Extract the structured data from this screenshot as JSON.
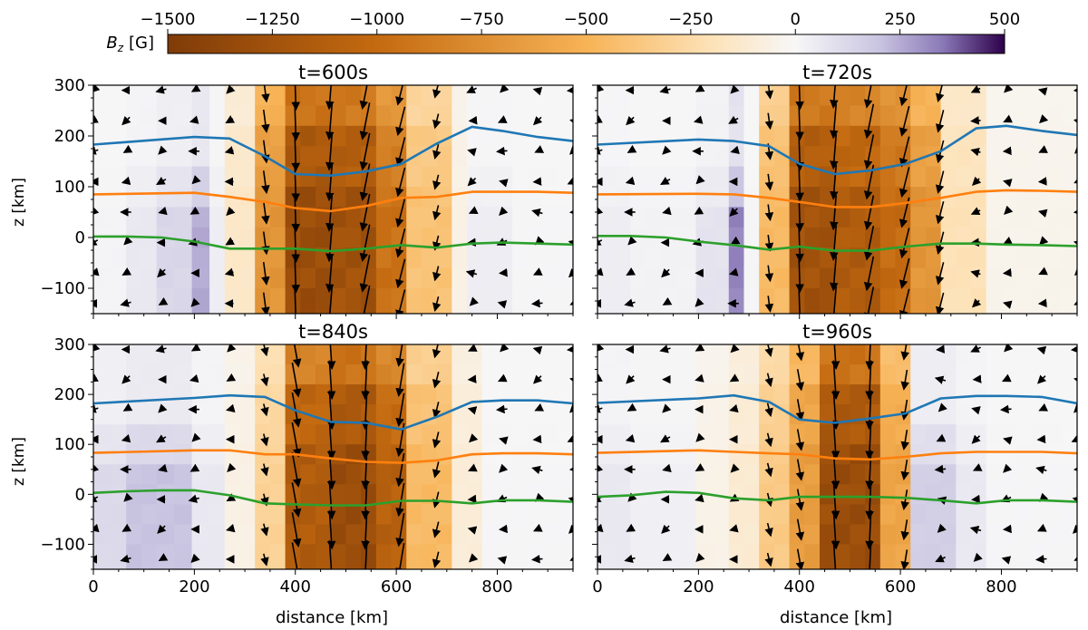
{
  "chart_data": {
    "type": "heatmap",
    "colorbar": {
      "label": "B_z [G]",
      "label_main": "B",
      "label_sub": "z",
      "label_unit": "[G]",
      "range": [
        -1500,
        500
      ],
      "ticks": [
        -1500,
        -1250,
        -1000,
        -750,
        -500,
        -250,
        0,
        250,
        500
      ],
      "tick_labels": [
        "−1500",
        "−1250",
        "−1000",
        "−750",
        "−500",
        "−250",
        "0",
        "250",
        "500"
      ],
      "colormap": "PuOr",
      "stops": [
        {
          "value": -1500,
          "color": "#7f3b08"
        },
        {
          "value": -1000,
          "color": "#c46a10"
        },
        {
          "value": -500,
          "color": "#f7b356"
        },
        {
          "value": -200,
          "color": "#fde2b8"
        },
        {
          "value": 0,
          "color": "#f7f7f7"
        },
        {
          "value": 200,
          "color": "#c9c5e1"
        },
        {
          "value": 350,
          "color": "#8b7ab8"
        },
        {
          "value": 500,
          "color": "#2d004b"
        }
      ]
    },
    "x_axis": {
      "label": "distance [km]",
      "range": [
        0,
        950
      ],
      "ticks": [
        0,
        200,
        400,
        600,
        800
      ],
      "tick_labels": [
        "0",
        "200",
        "400",
        "600",
        "800"
      ]
    },
    "y_axis": {
      "label": "z [km]",
      "range": [
        -150,
        300
      ],
      "ticks": [
        -100,
        0,
        100,
        200,
        300
      ],
      "tick_labels": [
        "−100",
        "0",
        "100",
        "200",
        "300"
      ]
    },
    "column_x": [
      0,
      35,
      65,
      95,
      125,
      160,
      195,
      230,
      260,
      290,
      320,
      350,
      380,
      410,
      440,
      470,
      500,
      530,
      560,
      590,
      620,
      650,
      680,
      710,
      740,
      770,
      800,
      830,
      860,
      890,
      920,
      950
    ],
    "row_z": [
      300,
      260,
      220,
      180,
      140,
      100,
      60,
      20,
      -20,
      -60,
      -100,
      -150
    ],
    "line_colors": [
      "#1f77b4",
      "#ff7f0e",
      "#2ca02c"
    ],
    "arrow_x": [
      0,
      65,
      135,
      200,
      270,
      340,
      400,
      470,
      540,
      610,
      680,
      750,
      810,
      880,
      950
    ],
    "arrow_z": [
      290,
      230,
      170,
      110,
      50,
      -10,
      -70,
      -130
    ],
    "panels": [
      {
        "title": "t=600s",
        "columns": [
          {
            "x0": 0,
            "x1": 65,
            "bz": 15
          },
          {
            "x0": 65,
            "x1": 125,
            "bz": 60
          },
          {
            "x0": 125,
            "x1": 190,
            "bz": 130
          },
          {
            "x0": 190,
            "x1": 230,
            "bz": 250
          },
          {
            "x0": 230,
            "x1": 265,
            "bz": 40
          },
          {
            "x0": 265,
            "x1": 320,
            "bz": -150
          },
          {
            "x0": 320,
            "x1": 380,
            "bz": -700
          },
          {
            "x0": 380,
            "x1": 460,
            "bz": -1300
          },
          {
            "x0": 460,
            "x1": 560,
            "bz": -1250
          },
          {
            "x0": 560,
            "x1": 630,
            "bz": -950
          },
          {
            "x0": 630,
            "x1": 700,
            "bz": -400
          },
          {
            "x0": 700,
            "x1": 740,
            "bz": -60
          },
          {
            "x0": 740,
            "x1": 820,
            "bz": 40
          },
          {
            "x0": 820,
            "x1": 950,
            "bz": 10
          }
        ],
        "lines": [
          {
            "x": [
              0,
              200,
              270,
              340,
              400,
              470,
              540,
              610,
              680,
              750,
              810,
              880,
              950
            ],
            "z": [
              183,
              198,
              195,
              160,
              125,
              122,
              130,
              145,
              185,
              218,
              210,
              198,
              190
            ]
          },
          {
            "x": [
              0,
              200,
              270,
              340,
              400,
              470,
              540,
              610,
              680,
              750,
              810,
              880,
              950
            ],
            "z": [
              85,
              88,
              80,
              70,
              58,
              52,
              62,
              78,
              80,
              90,
              90,
              90,
              88
            ]
          },
          {
            "x": [
              0,
              65,
              135,
              200,
              270,
              340,
              400,
              470,
              540,
              610,
              680,
              750,
              810,
              880,
              950
            ],
            "z": [
              2,
              2,
              0,
              -8,
              -22,
              -22,
              -22,
              -27,
              -22,
              -15,
              -20,
              -12,
              -10,
              -12,
              -14
            ]
          }
        ]
      },
      {
        "title": "t=720s",
        "columns": [
          {
            "x0": 0,
            "x1": 65,
            "bz": 40
          },
          {
            "x0": 65,
            "x1": 200,
            "bz": 20
          },
          {
            "x0": 200,
            "x1": 255,
            "bz": 80
          },
          {
            "x0": 255,
            "x1": 290,
            "bz": 330
          },
          {
            "x0": 290,
            "x1": 320,
            "bz": 10
          },
          {
            "x0": 320,
            "x1": 380,
            "bz": -450
          },
          {
            "x0": 380,
            "x1": 460,
            "bz": -1250
          },
          {
            "x0": 460,
            "x1": 570,
            "bz": -1150
          },
          {
            "x0": 570,
            "x1": 630,
            "bz": -1000
          },
          {
            "x0": 630,
            "x1": 690,
            "bz": -700
          },
          {
            "x0": 690,
            "x1": 760,
            "bz": -200
          },
          {
            "x0": 760,
            "x1": 950,
            "bz": -40
          }
        ],
        "lines": [
          {
            "x": [
              0,
              200,
              270,
              340,
              400,
              470,
              540,
              610,
              680,
              750,
              810,
              880,
              950
            ],
            "z": [
              183,
              193,
              190,
              180,
              145,
              125,
              132,
              145,
              170,
              215,
              220,
              210,
              202
            ]
          },
          {
            "x": [
              0,
              200,
              270,
              340,
              400,
              470,
              540,
              610,
              680,
              750,
              810,
              880,
              950
            ],
            "z": [
              85,
              86,
              85,
              78,
              70,
              60,
              60,
              68,
              78,
              90,
              93,
              92,
              90
            ]
          },
          {
            "x": [
              0,
              65,
              135,
              200,
              270,
              340,
              400,
              470,
              540,
              610,
              680,
              750,
              810,
              880,
              950
            ],
            "z": [
              3,
              3,
              0,
              -8,
              -15,
              -24,
              -18,
              -26,
              -26,
              -18,
              -12,
              -12,
              -14,
              -15,
              -17
            ]
          }
        ]
      },
      {
        "title": "t=840s",
        "columns": [
          {
            "x0": 0,
            "x1": 65,
            "bz": 120
          },
          {
            "x0": 65,
            "x1": 195,
            "bz": 200
          },
          {
            "x0": 195,
            "x1": 250,
            "bz": 60
          },
          {
            "x0": 250,
            "x1": 320,
            "bz": -60
          },
          {
            "x0": 320,
            "x1": 380,
            "bz": -300
          },
          {
            "x0": 380,
            "x1": 460,
            "bz": -1150
          },
          {
            "x0": 460,
            "x1": 560,
            "bz": -1300
          },
          {
            "x0": 560,
            "x1": 630,
            "bz": -1100
          },
          {
            "x0": 630,
            "x1": 700,
            "bz": -450
          },
          {
            "x0": 700,
            "x1": 760,
            "bz": -100
          },
          {
            "x0": 760,
            "x1": 950,
            "bz": 10
          }
        ],
        "lines": [
          {
            "x": [
              0,
              200,
              270,
              340,
              400,
              470,
              540,
              610,
              680,
              750,
              810,
              880,
              950
            ],
            "z": [
              182,
              193,
              198,
              195,
              168,
              145,
              143,
              130,
              155,
              185,
              188,
              188,
              182
            ]
          },
          {
            "x": [
              0,
              200,
              270,
              340,
              400,
              470,
              540,
              610,
              680,
              750,
              810,
              880,
              950
            ],
            "z": [
              83,
              88,
              88,
              80,
              80,
              72,
              65,
              63,
              68,
              80,
              82,
              82,
              80
            ]
          },
          {
            "x": [
              0,
              65,
              135,
              200,
              270,
              340,
              400,
              470,
              540,
              610,
              680,
              750,
              810,
              880,
              950
            ],
            "z": [
              3,
              6,
              8,
              8,
              -2,
              -18,
              -20,
              -22,
              -22,
              -13,
              -13,
              -18,
              -12,
              -12,
              -15
            ]
          }
        ]
      },
      {
        "title": "t=960s",
        "columns": [
          {
            "x0": 0,
            "x1": 65,
            "bz": 60
          },
          {
            "x0": 65,
            "x1": 195,
            "bz": 30
          },
          {
            "x0": 195,
            "x1": 250,
            "bz": -50
          },
          {
            "x0": 250,
            "x1": 320,
            "bz": -120
          },
          {
            "x0": 320,
            "x1": 380,
            "bz": -350
          },
          {
            "x0": 380,
            "x1": 450,
            "bz": -650
          },
          {
            "x0": 450,
            "x1": 570,
            "bz": -1300
          },
          {
            "x0": 570,
            "x1": 630,
            "bz": -600
          },
          {
            "x0": 630,
            "x1": 700,
            "bz": 160
          },
          {
            "x0": 700,
            "x1": 760,
            "bz": 60
          },
          {
            "x0": 760,
            "x1": 950,
            "bz": 10
          }
        ],
        "lines": [
          {
            "x": [
              0,
              200,
              270,
              340,
              400,
              470,
              540,
              610,
              680,
              750,
              810,
              880,
              950
            ],
            "z": [
              183,
              192,
              198,
              185,
              150,
              143,
              152,
              162,
              192,
              197,
              197,
              195,
              182
            ]
          },
          {
            "x": [
              0,
              200,
              270,
              340,
              400,
              470,
              540,
              610,
              680,
              750,
              810,
              880,
              950
            ],
            "z": [
              83,
              88,
              85,
              82,
              80,
              72,
              70,
              75,
              82,
              85,
              85,
              85,
              82
            ]
          },
          {
            "x": [
              0,
              65,
              135,
              200,
              270,
              340,
              400,
              470,
              540,
              610,
              680,
              750,
              810,
              880,
              950
            ],
            "z": [
              -5,
              -2,
              5,
              3,
              -8,
              -12,
              -5,
              -5,
              -5,
              -7,
              -12,
              -18,
              -12,
              -12,
              -15
            ]
          }
        ]
      }
    ]
  }
}
